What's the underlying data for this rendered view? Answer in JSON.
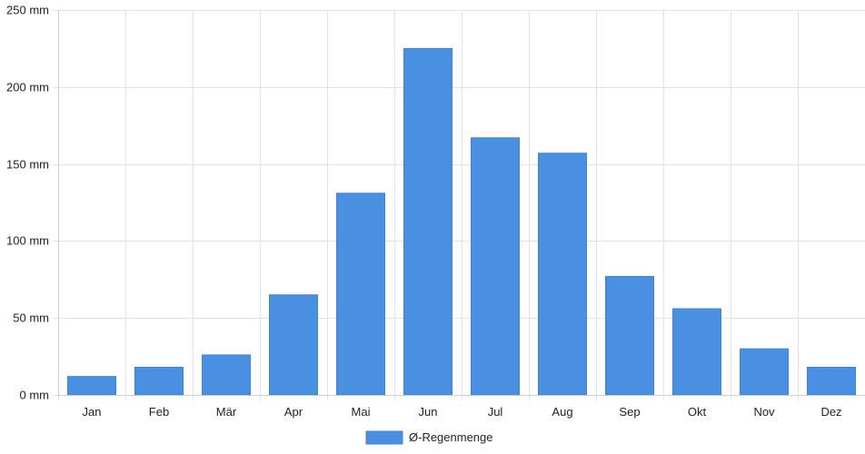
{
  "chart_data": {
    "type": "bar",
    "categories": [
      "Jan",
      "Feb",
      "Mär",
      "Apr",
      "Mai",
      "Jun",
      "Jul",
      "Aug",
      "Sep",
      "Okt",
      "Nov",
      "Dez"
    ],
    "series": [
      {
        "name": "Ø-Regenmenge",
        "values": [
          12,
          18,
          26,
          65,
          131,
          225,
          167,
          157,
          77,
          56,
          30,
          18
        ],
        "color": "#4a90e2"
      }
    ],
    "ylim": [
      0,
      250
    ],
    "yticks": [
      0,
      50,
      100,
      150,
      200,
      250
    ],
    "y_unit": "mm",
    "ytick_labels": [
      "0 mm",
      "50 mm",
      "100 mm",
      "150 mm",
      "200 mm",
      "250 mm"
    ],
    "grid": true,
    "legend": "bottom-center",
    "title": "",
    "xlabel": "",
    "ylabel": ""
  }
}
